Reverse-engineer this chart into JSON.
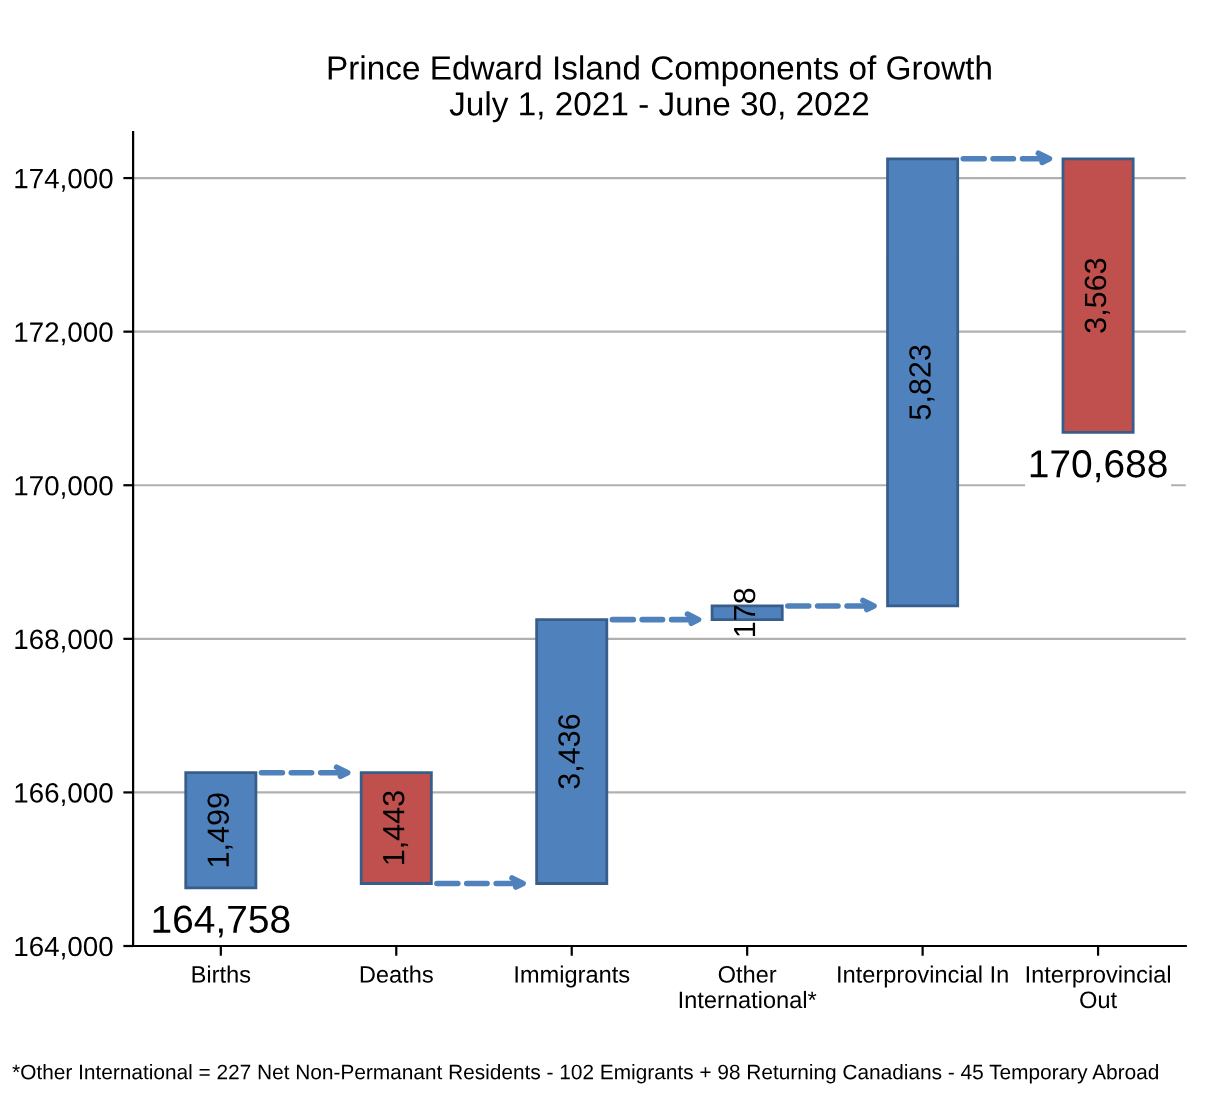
{
  "chart_data": {
    "type": "bar",
    "title": "Prince Edward Island Components of Growth\nJuly 1, 2021 - June 30, 2022",
    "categories": [
      "Births",
      "Deaths",
      "Immigrants",
      "Other\nInternational*",
      "Interprovincial In",
      "Interprovincial\nOut"
    ],
    "base": [
      164758,
      166257,
      164814,
      168250,
      168428,
      174251
    ],
    "values": [
      1499,
      -1443,
      3436,
      178,
      5823,
      -3563
    ],
    "value_labels": [
      "1,499",
      "1,443",
      "3,436",
      "178",
      "5,823",
      "3,563"
    ],
    "colors": [
      "#4f81bd",
      "#c0504d",
      "#4f81bd",
      "#4f81bd",
      "#4f81bd",
      "#c0504d"
    ],
    "ylim": [
      164000,
      174600
    ],
    "yticks": [
      {
        "value": 164000,
        "label": "164,000"
      },
      {
        "value": 166000,
        "label": "166,000"
      },
      {
        "value": 168000,
        "label": "168,000"
      },
      {
        "value": 170000,
        "label": "170,000"
      },
      {
        "value": 172000,
        "label": "172,000"
      },
      {
        "value": 174000,
        "label": "174,000"
      }
    ],
    "grid": "y",
    "annotations": [
      {
        "text": "164,758",
        "x": "Births",
        "y": 164758
      },
      {
        "text": "170,688",
        "x": "Interprovincial\nOut",
        "y": 170688
      },
      "*Other International = 227 Net Non-Permanant Residents - 102 Emigrants + 98 Returning Canadians - 45 Temporary Abroad"
    ]
  }
}
